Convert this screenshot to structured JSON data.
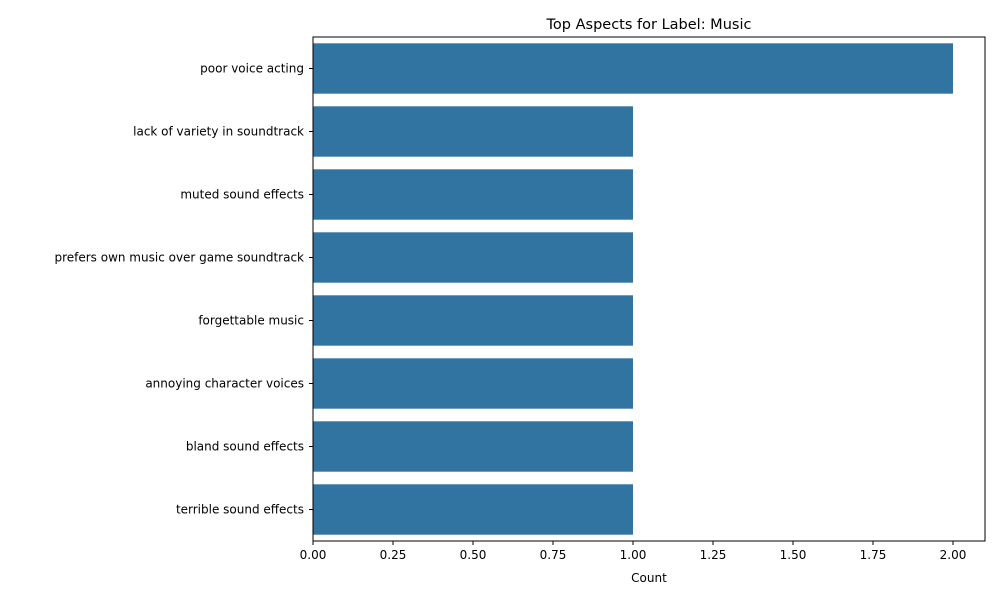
{
  "chart_data": {
    "type": "bar",
    "orientation": "horizontal",
    "title": "Top Aspects for Label: Music",
    "xlabel": "Count",
    "ylabel": "",
    "categories": [
      "poor voice acting",
      "lack of variety in soundtrack",
      "muted sound effects",
      "prefers own music over game soundtrack",
      "forgettable music",
      "annoying character voices",
      "bland sound effects",
      "terrible sound effects"
    ],
    "values": [
      2,
      1,
      1,
      1,
      1,
      1,
      1,
      1
    ],
    "xlim": [
      0,
      2.1
    ],
    "xticks": [
      "0.00",
      "0.25",
      "0.50",
      "0.75",
      "1.00",
      "1.25",
      "1.50",
      "1.75",
      "2.00"
    ],
    "bar_color": "#3274a1",
    "grid": false,
    "legend": "none"
  }
}
